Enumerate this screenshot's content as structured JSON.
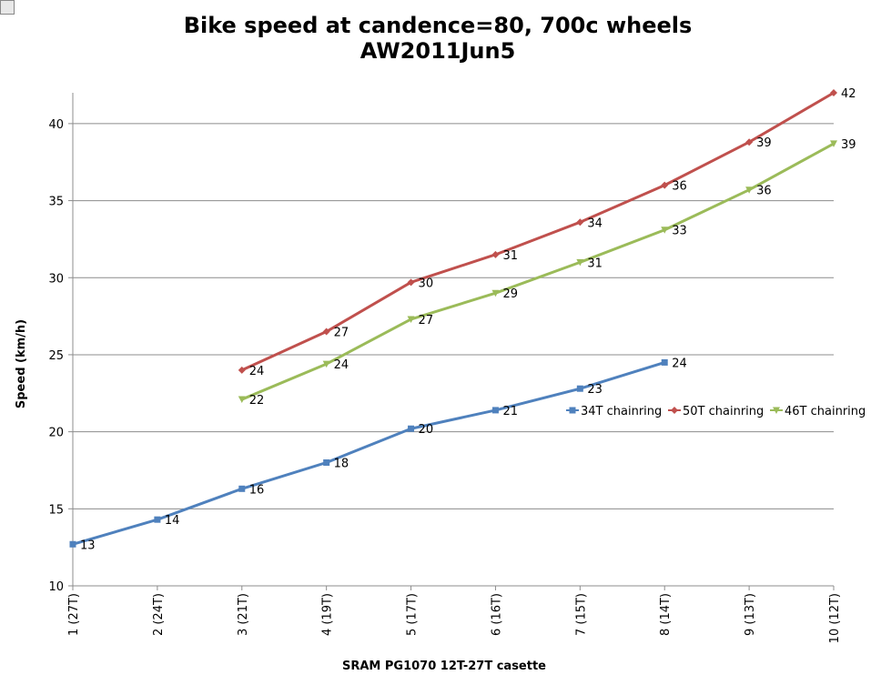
{
  "chart_data": {
    "type": "line",
    "title_lines": [
      "Bike speed at candence=80, 700c wheels",
      "AW2011Jun5"
    ],
    "xlabel": "SRAM PG1070 12T-27T casette",
    "ylabel": "Speed (km/h)",
    "categories": [
      "1 (27T)",
      "2 (24T)",
      "3 (21T)",
      "4 (19T)",
      "5 (17T)",
      "6 (16T)",
      "7 (15T)",
      "8 (14T)",
      "9 (13T)",
      "10 (12T)"
    ],
    "ylim": [
      10,
      42
    ],
    "yticks": [
      10,
      15,
      20,
      25,
      30,
      35,
      40
    ],
    "grid": true,
    "legend_position": "right",
    "series": [
      {
        "name": "34T chainring",
        "color": "#4f81bd",
        "marker": "square",
        "values": [
          12.7,
          14.3,
          16.3,
          18.0,
          20.2,
          21.4,
          22.8,
          24.5,
          null,
          null
        ],
        "labels": [
          "13",
          "14",
          "16",
          "18",
          "20",
          "21",
          "23",
          "24",
          "",
          ""
        ]
      },
      {
        "name": "50T chainring",
        "color": "#c0504d",
        "marker": "diamond",
        "values": [
          null,
          null,
          24.0,
          26.5,
          29.7,
          31.5,
          33.6,
          36.0,
          38.8,
          42.0
        ],
        "labels": [
          "",
          "",
          "24",
          "27",
          "30",
          "31",
          "34",
          "36",
          "39",
          "42"
        ]
      },
      {
        "name": "46T chainring",
        "color": "#9bbb59",
        "marker": "triangle",
        "values": [
          null,
          null,
          22.1,
          24.4,
          27.3,
          29.0,
          31.0,
          33.1,
          35.7,
          38.7
        ],
        "labels": [
          "",
          "",
          "22",
          "24",
          "27",
          "29",
          "31",
          "33",
          "36",
          "39"
        ]
      }
    ]
  }
}
